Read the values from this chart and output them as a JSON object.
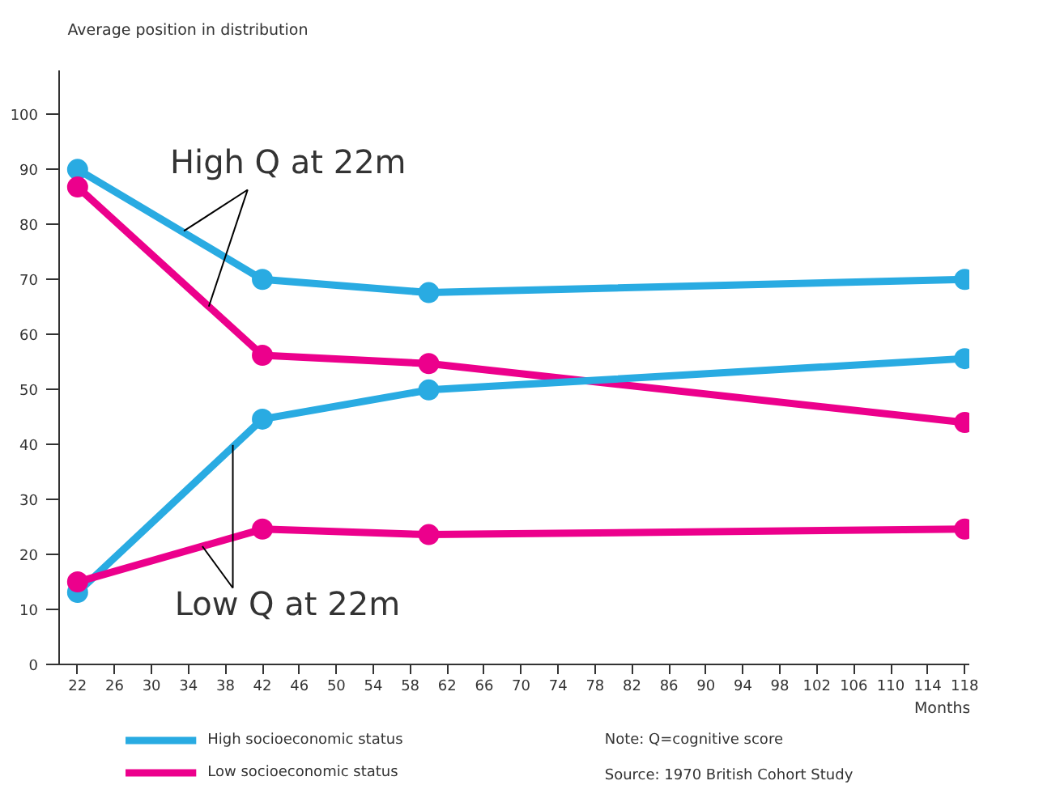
{
  "chart_data": {
    "type": "line",
    "ylabel": "Average position in distribution",
    "xlabel": "Months",
    "x": [
      22,
      42,
      60,
      118
    ],
    "series": [
      {
        "name": "High socioeconomic status",
        "color": "#29abe2",
        "values": [
          90,
          70,
          67.6,
          70
        ]
      },
      {
        "name": "Low socioeconomic status",
        "color": "#ec008c",
        "values": [
          86.8,
          56.2,
          54.7,
          44
        ]
      },
      {
        "color": "#29abe2",
        "values": [
          13.1,
          44.6,
          49.9,
          55.6
        ]
      },
      {
        "color": "#ec008c",
        "values": [
          15,
          24.6,
          23.6,
          24.6
        ]
      }
    ],
    "xlim": [
      20,
      118.5
    ],
    "ylim": [
      0,
      108
    ],
    "xticks": [
      22,
      26,
      30,
      34,
      38,
      42,
      46,
      50,
      54,
      58,
      62,
      66,
      70,
      74,
      78,
      82,
      86,
      90,
      94,
      98,
      102,
      106,
      110,
      114,
      118
    ],
    "yticks": [
      0,
      10,
      20,
      30,
      40,
      50,
      60,
      70,
      80,
      90,
      100
    ],
    "annotations": [
      {
        "text": "High Q at 22m",
        "x": 33.5,
        "y": 78.8
      },
      {
        "text": "Low Q at 22m",
        "x": 38.8,
        "y": 39.9
      },
      "Note: Q=cognitive score",
      "Source: 1970 British Cohort Study"
    ],
    "legend": "bottom",
    "grid": false,
    "marker": "circle",
    "line_style": "solid"
  }
}
